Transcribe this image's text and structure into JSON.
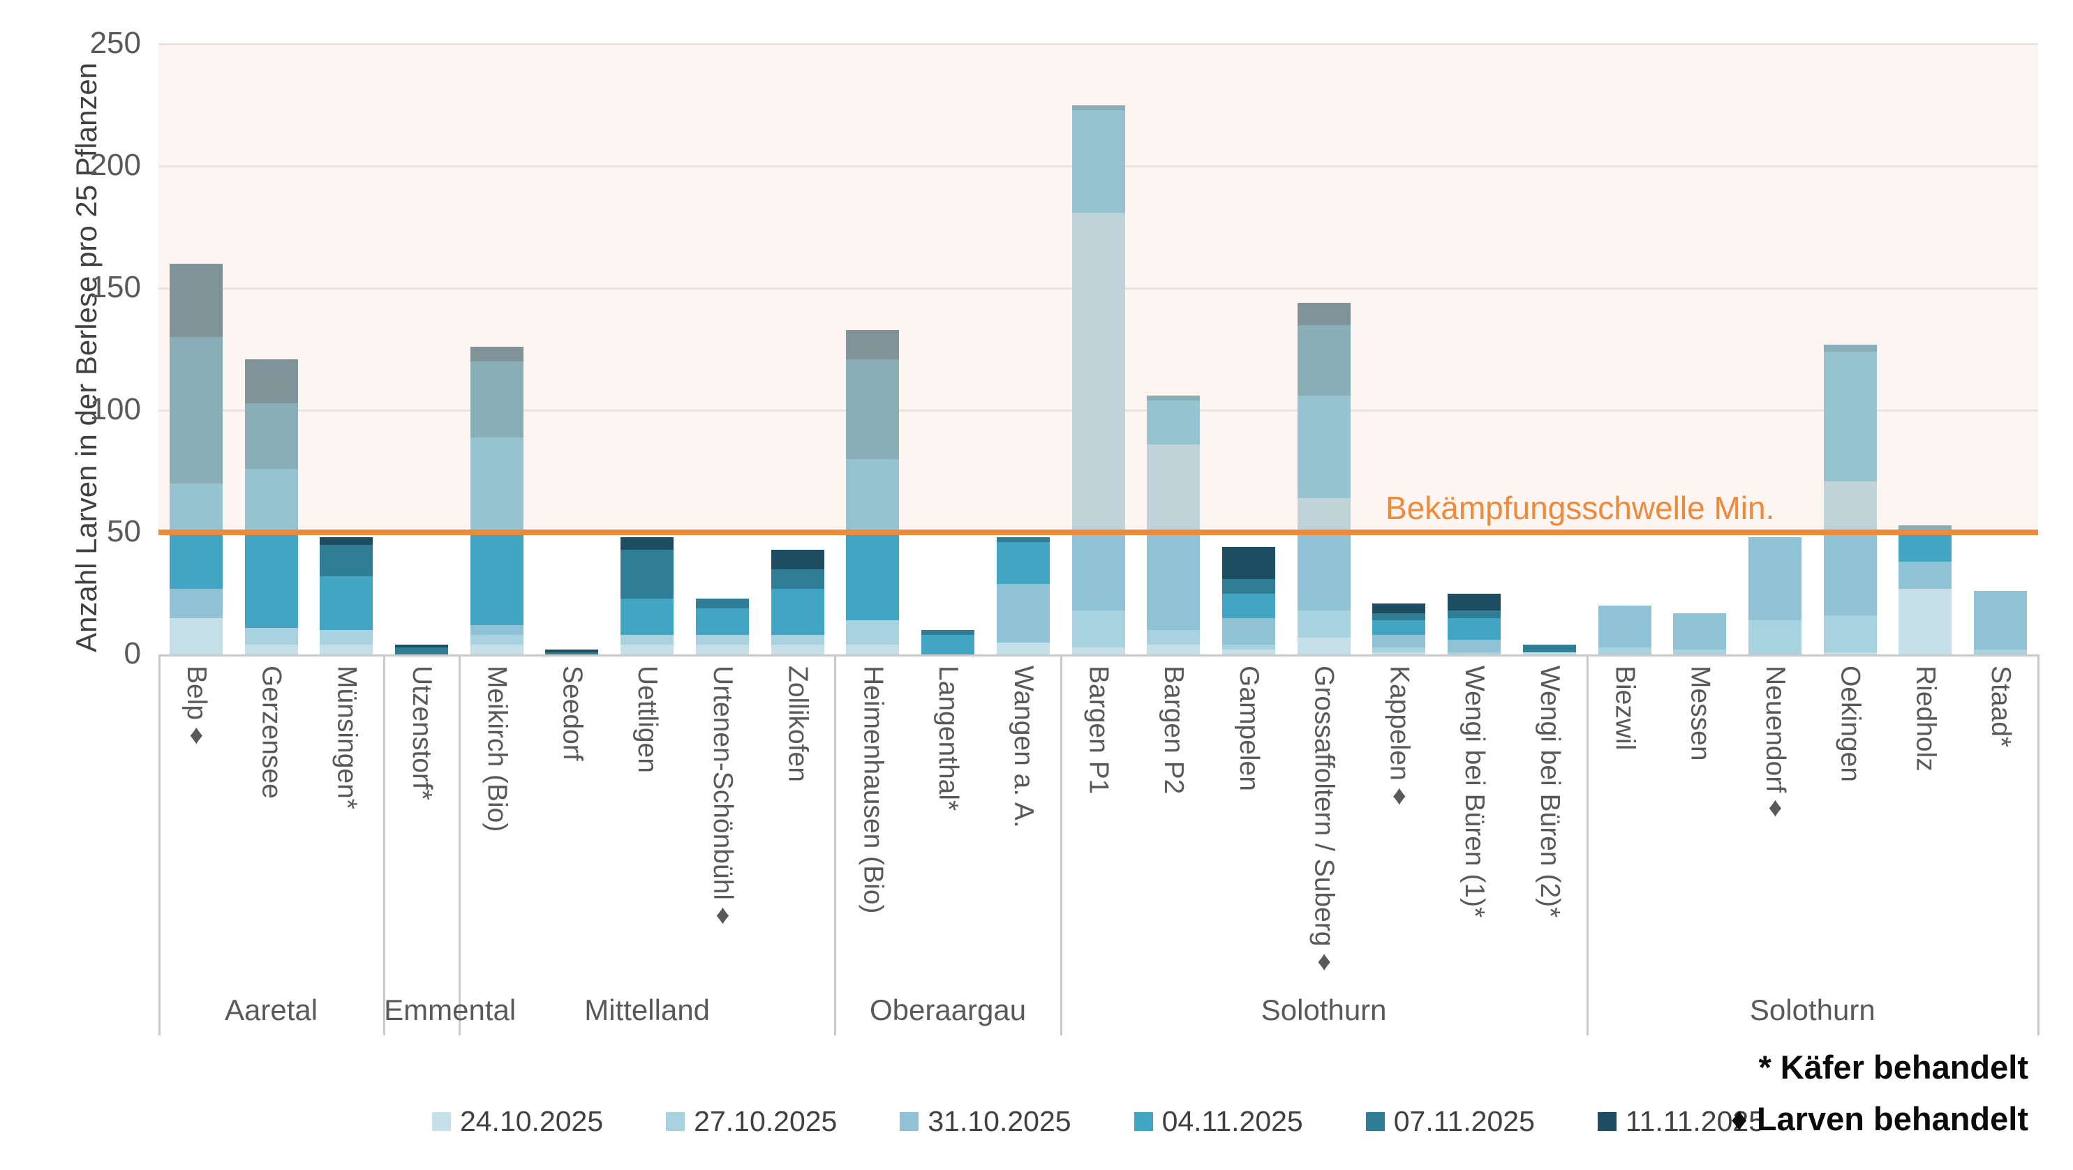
{
  "chart_data": {
    "type": "bar",
    "stacked": true,
    "ylabel": "Anzahl Larven in der Berlese pro 25 Pflanzen",
    "ylim": [
      0,
      250
    ],
    "yticks": [
      0,
      50,
      100,
      150,
      200,
      250
    ],
    "grid": true,
    "legend_position": "bottom",
    "threshold": {
      "value": 50,
      "label": "Bekämpfungsschwelle Min.",
      "color": "#EE8A39"
    },
    "band_above_threshold": {
      "from": 50,
      "to": 250,
      "color": "rgba(250,233,223,0.45)"
    },
    "categories": [
      "Belp♦",
      "Gerzensee",
      "Münsingen*",
      "Utzenstorf*",
      "Meikirch (Bio)",
      "Seedorf",
      "Uettligen",
      "Urtenen-Schönbühl♦",
      "Zollikofen",
      "Heimenhausen (Bio)",
      "Langenthal*",
      "Wangen a. A.",
      "Bargen P1",
      "Bargen P2",
      "Gampelen",
      "Grossaffoltern / Suberg♦",
      "Kappelen♦",
      "Wengi bei Büren (1)*",
      "Wengi bei Büren (2)*",
      "Biezwil",
      "Messen",
      "Neuendorf♦",
      "Oekingen",
      "Riedholz",
      "Staad*"
    ],
    "groups": [
      {
        "label": "Aaretal",
        "count": 3
      },
      {
        "label": "Emmental",
        "count": 1
      },
      {
        "label": "Mittelland",
        "count": 5
      },
      {
        "label": "Oberaargau",
        "count": 3
      },
      {
        "label": "Solothurn",
        "count": 7
      },
      {
        "label": "Solothurn",
        "count": 6
      }
    ],
    "series": [
      {
        "name": "24.10.2025",
        "color": "#C6E0EA",
        "values": [
          15,
          4,
          4,
          0,
          4,
          0,
          4,
          4,
          4,
          4,
          0,
          5,
          3,
          4,
          2,
          7,
          1,
          0,
          1,
          0,
          0,
          0,
          1,
          27,
          0
        ]
      },
      {
        "name": "27.10.2025",
        "color": "#A8D2E0",
        "values": [
          0,
          7,
          6,
          0,
          4,
          0,
          4,
          4,
          4,
          10,
          0,
          0,
          15,
          6,
          2,
          11,
          2,
          1,
          0,
          3,
          2,
          14,
          15,
          0,
          2
        ]
      },
      {
        "name": "31.10.2025",
        "color": "#8FC2D4",
        "values": [
          12,
          0,
          0,
          0,
          4,
          0,
          0,
          0,
          0,
          0,
          0,
          24,
          163,
          76,
          11,
          46,
          5,
          5,
          0,
          17,
          15,
          34,
          55,
          11,
          24
        ]
      },
      {
        "name": "04.11.2025",
        "color": "#43A5C4",
        "values": [
          43,
          65,
          22,
          0,
          77,
          0,
          15,
          11,
          19,
          66,
          8,
          17,
          42,
          18,
          10,
          42,
          6,
          9,
          0,
          0,
          0,
          0,
          53,
          12,
          0
        ]
      },
      {
        "name": "07.11.2025",
        "color": "#2F7E96",
        "values": [
          60,
          27,
          13,
          3,
          31,
          1,
          20,
          4,
          8,
          41,
          2,
          2,
          2,
          2,
          6,
          29,
          3,
          3,
          3,
          0,
          0,
          0,
          3,
          3,
          0
        ]
      },
      {
        "name": "11.11.2025",
        "color": "#1C4D60",
        "values": [
          30,
          18,
          3,
          1,
          6,
          1,
          5,
          0,
          8,
          12,
          0,
          0,
          0,
          0,
          13,
          9,
          4,
          7,
          0,
          0,
          0,
          0,
          0,
          0,
          0
        ]
      }
    ],
    "totals": [
      160,
      121,
      48,
      4,
      126,
      2,
      48,
      23,
      43,
      133,
      10,
      48,
      225,
      106,
      44,
      144,
      21,
      25,
      4,
      20,
      17,
      48,
      127,
      53,
      26
    ]
  },
  "notes": {
    "line1": "* Käfer behandelt",
    "line2": "♦ Larven behandelt"
  },
  "layout_colors": {
    "gridline": "#E3E0DE",
    "axis": "#C9C9C9",
    "tick_text": "#595959",
    "axis_title_text": "#404040"
  }
}
